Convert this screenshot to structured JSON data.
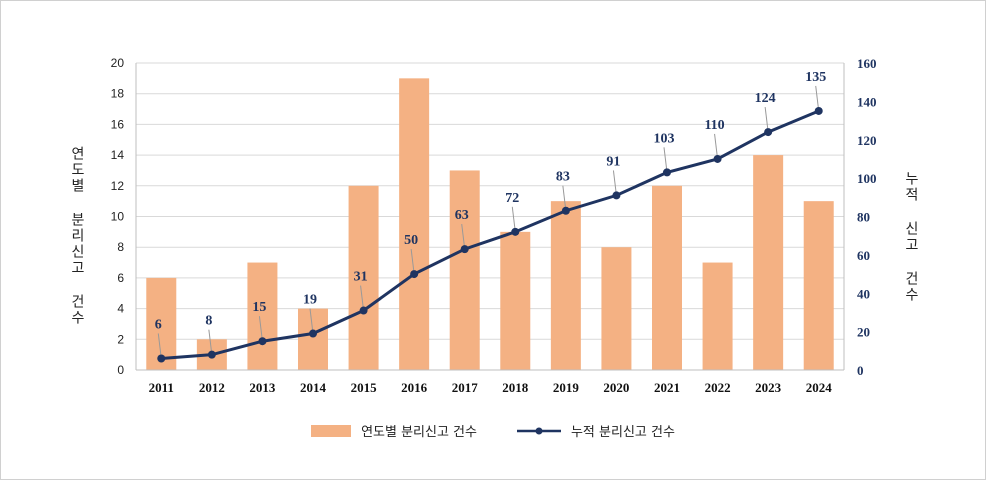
{
  "chart_data": {
    "type": "bar+line",
    "categories": [
      "2011",
      "2012",
      "2013",
      "2014",
      "2015",
      "2016",
      "2017",
      "2018",
      "2019",
      "2020",
      "2021",
      "2022",
      "2023",
      "2024"
    ],
    "series": [
      {
        "name": "연도별 분리신고 건수",
        "type": "bar",
        "axis": "left",
        "color": "#f4b183",
        "values": [
          6,
          2,
          7,
          4,
          12,
          19,
          13,
          9,
          11,
          8,
          12,
          7,
          14,
          11
        ]
      },
      {
        "name": "누적 분리신고 건수",
        "type": "line",
        "axis": "right",
        "color": "#1f3461",
        "values": [
          6,
          8,
          15,
          19,
          31,
          50,
          63,
          72,
          83,
          91,
          103,
          110,
          124,
          135
        ]
      }
    ],
    "ylabel_left": "연도별 분리신고 건수",
    "ylabel_right": "누적 신고 건수",
    "ylim_left": [
      0,
      20
    ],
    "yticks_left": [
      0,
      2,
      4,
      6,
      8,
      10,
      12,
      14,
      16,
      18,
      20
    ],
    "ylim_right": [
      0,
      160
    ],
    "yticks_right": [
      0,
      20,
      40,
      60,
      80,
      100,
      120,
      140,
      160
    ],
    "grid": true,
    "legend": "bottom"
  }
}
